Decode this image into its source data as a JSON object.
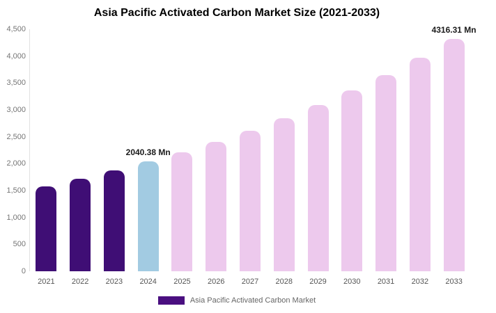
{
  "chart_data": {
    "type": "bar",
    "title": "Asia Pacific Activated Carbon Market Size (2021-2033)",
    "categories": [
      "2021",
      "2022",
      "2023",
      "2024",
      "2025",
      "2026",
      "2027",
      "2028",
      "2029",
      "2030",
      "2031",
      "2032",
      "2033"
    ],
    "values": [
      1580,
      1720,
      1870,
      2040.38,
      2210,
      2400,
      2610,
      2840,
      3090,
      3360,
      3650,
      3970,
      4316.31
    ],
    "bar_colors": [
      "#3f0e75",
      "#3f0e75",
      "#3f0e75",
      "#a2cbe2",
      "#edc9ed",
      "#edc9ed",
      "#edc9ed",
      "#edc9ed",
      "#edc9ed",
      "#edc9ed",
      "#edc9ed",
      "#edc9ed",
      "#edc9ed"
    ],
    "xlabel": "",
    "ylabel": "",
    "ylim": [
      0,
      4500
    ],
    "ytick_step": 500,
    "grid": false,
    "legend_position": "bottom",
    "legend": [
      {
        "label": "Asia Pacific Activated Carbon Market",
        "color": "#4a0f80"
      }
    ],
    "annotations": [
      {
        "category": "2024",
        "text": "2040.38 Mn"
      },
      {
        "category": "2033",
        "text": "4316.31 Mn"
      }
    ]
  }
}
